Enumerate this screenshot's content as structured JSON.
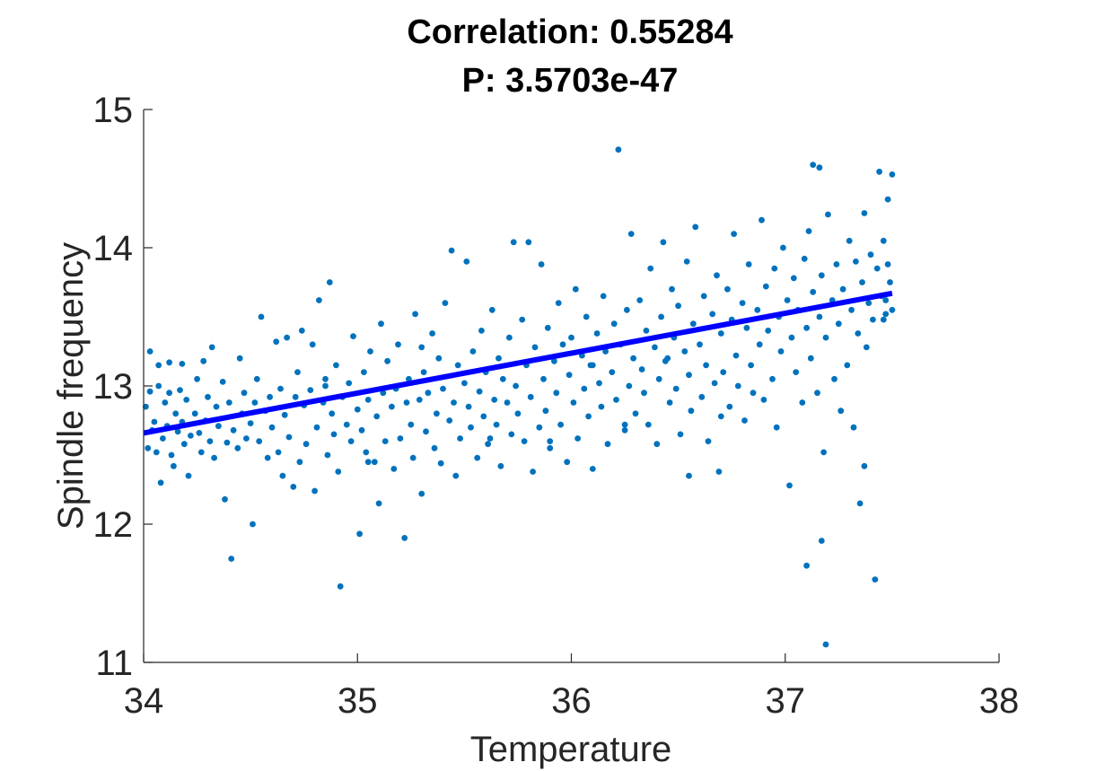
{
  "chart_data": {
    "type": "scatter",
    "title": "Correlation: 0.55284",
    "subtitle": "P: 3.5703e-47",
    "xlabel": "Temperature",
    "ylabel": "Spindle frequency",
    "xlim": [
      34,
      38
    ],
    "ylim": [
      11,
      15
    ],
    "xticks": [
      "34",
      "35",
      "36",
      "37",
      "38"
    ],
    "yticks": [
      "11",
      "12",
      "13",
      "14",
      "15"
    ],
    "grid": false,
    "point_color": "#0072BD",
    "fit_color": "#0000FF",
    "fit_line": {
      "x": [
        34.0,
        37.5
      ],
      "y": [
        12.66,
        13.67
      ]
    },
    "points": [
      [
        34.01,
        12.85
      ],
      [
        34.02,
        12.55
      ],
      [
        34.03,
        12.96
      ],
      [
        34.03,
        13.25
      ],
      [
        34.04,
        12.68
      ],
      [
        34.05,
        12.74
      ],
      [
        34.06,
        12.52
      ],
      [
        34.07,
        13.0
      ],
      [
        34.07,
        13.15
      ],
      [
        34.08,
        12.3
      ],
      [
        34.09,
        12.62
      ],
      [
        34.1,
        12.88
      ],
      [
        34.11,
        12.71
      ],
      [
        34.12,
        12.95
      ],
      [
        34.12,
        13.17
      ],
      [
        34.13,
        12.5
      ],
      [
        34.14,
        12.42
      ],
      [
        34.15,
        12.8
      ],
      [
        34.16,
        12.67
      ],
      [
        34.17,
        12.97
      ],
      [
        34.18,
        13.16
      ],
      [
        34.18,
        12.74
      ],
      [
        34.19,
        12.58
      ],
      [
        34.2,
        12.9
      ],
      [
        34.21,
        12.35
      ],
      [
        34.22,
        12.64
      ],
      [
        34.24,
        12.8
      ],
      [
        34.25,
        13.05
      ],
      [
        34.26,
        12.66
      ],
      [
        34.27,
        12.52
      ],
      [
        34.28,
        13.18
      ],
      [
        34.29,
        12.75
      ],
      [
        34.3,
        12.92
      ],
      [
        34.31,
        12.6
      ],
      [
        34.32,
        13.28
      ],
      [
        34.33,
        12.48
      ],
      [
        34.34,
        12.85
      ],
      [
        34.35,
        12.71
      ],
      [
        34.37,
        13.03
      ],
      [
        34.38,
        12.18
      ],
      [
        34.39,
        12.59
      ],
      [
        34.4,
        12.88
      ],
      [
        34.41,
        11.75
      ],
      [
        34.42,
        12.68
      ],
      [
        34.44,
        12.55
      ],
      [
        34.45,
        13.2
      ],
      [
        34.46,
        12.8
      ],
      [
        34.47,
        12.95
      ],
      [
        34.48,
        12.62
      ],
      [
        34.5,
        12.73
      ],
      [
        34.51,
        12.0
      ],
      [
        34.52,
        12.88
      ],
      [
        34.53,
        13.05
      ],
      [
        34.54,
        12.6
      ],
      [
        34.55,
        13.5
      ],
      [
        34.57,
        12.82
      ],
      [
        34.58,
        12.48
      ],
      [
        34.59,
        12.92
      ],
      [
        34.6,
        12.7
      ],
      [
        34.62,
        13.32
      ],
      [
        34.63,
        12.52
      ],
      [
        34.64,
        12.98
      ],
      [
        34.65,
        12.35
      ],
      [
        34.66,
        12.79
      ],
      [
        34.67,
        13.35
      ],
      [
        34.68,
        12.63
      ],
      [
        34.7,
        12.27
      ],
      [
        34.71,
        12.92
      ],
      [
        34.72,
        13.1
      ],
      [
        34.73,
        12.45
      ],
      [
        34.74,
        13.4
      ],
      [
        34.75,
        12.86
      ],
      [
        34.76,
        12.58
      ],
      [
        34.78,
        12.97
      ],
      [
        34.79,
        13.3
      ],
      [
        34.8,
        12.24
      ],
      [
        34.81,
        12.7
      ],
      [
        34.82,
        13.62
      ],
      [
        34.84,
        12.88
      ],
      [
        34.85,
        13.05
      ],
      [
        34.86,
        12.5
      ],
      [
        34.87,
        13.75
      ],
      [
        34.88,
        12.8
      ],
      [
        34.89,
        12.65
      ],
      [
        34.9,
        13.15
      ],
      [
        34.91,
        12.38
      ],
      [
        34.92,
        11.55
      ],
      [
        34.93,
        12.92
      ],
      [
        34.95,
        12.72
      ],
      [
        34.96,
        13.02
      ],
      [
        34.97,
        12.6
      ],
      [
        34.98,
        13.36
      ],
      [
        35.0,
        12.83
      ],
      [
        35.01,
        11.93
      ],
      [
        35.02,
        12.68
      ],
      [
        35.03,
        13.1
      ],
      [
        35.04,
        12.52
      ],
      [
        35.05,
        12.9
      ],
      [
        35.06,
        13.25
      ],
      [
        35.08,
        12.45
      ],
      [
        35.09,
        12.78
      ],
      [
        35.1,
        12.15
      ],
      [
        35.11,
        13.45
      ],
      [
        35.12,
        12.95
      ],
      [
        35.13,
        12.6
      ],
      [
        35.14,
        13.18
      ],
      [
        35.16,
        12.85
      ],
      [
        35.17,
        12.4
      ],
      [
        35.18,
        12.98
      ],
      [
        35.19,
        13.3
      ],
      [
        35.2,
        12.62
      ],
      [
        35.22,
        11.9
      ],
      [
        35.23,
        12.88
      ],
      [
        35.24,
        13.05
      ],
      [
        35.25,
        12.72
      ],
      [
        35.26,
        12.48
      ],
      [
        35.27,
        13.52
      ],
      [
        35.29,
        12.9
      ],
      [
        35.3,
        12.22
      ],
      [
        35.31,
        13.1
      ],
      [
        35.32,
        12.67
      ],
      [
        35.33,
        12.95
      ],
      [
        35.35,
        13.38
      ],
      [
        35.36,
        12.55
      ],
      [
        35.37,
        12.8
      ],
      [
        35.38,
        13.2
      ],
      [
        35.39,
        12.44
      ],
      [
        35.4,
        12.98
      ],
      [
        35.41,
        13.6
      ],
      [
        35.43,
        12.75
      ],
      [
        35.44,
        13.98
      ],
      [
        35.45,
        12.88
      ],
      [
        35.46,
        12.35
      ],
      [
        35.47,
        13.15
      ],
      [
        35.48,
        12.62
      ],
      [
        35.5,
        13.02
      ],
      [
        35.51,
        13.9
      ],
      [
        35.52,
        12.85
      ],
      [
        35.53,
        12.7
      ],
      [
        35.54,
        13.25
      ],
      [
        35.56,
        12.48
      ],
      [
        35.57,
        12.96
      ],
      [
        35.58,
        13.4
      ],
      [
        35.59,
        12.78
      ],
      [
        35.6,
        13.1
      ],
      [
        35.61,
        12.58
      ],
      [
        35.63,
        13.55
      ],
      [
        35.64,
        12.9
      ],
      [
        35.65,
        12.72
      ],
      [
        35.66,
        13.2
      ],
      [
        35.67,
        12.42
      ],
      [
        35.68,
        13.05
      ],
      [
        35.7,
        12.88
      ],
      [
        35.71,
        13.35
      ],
      [
        35.72,
        12.65
      ],
      [
        35.73,
        14.04
      ],
      [
        35.74,
        13.0
      ],
      [
        35.75,
        12.8
      ],
      [
        35.77,
        13.48
      ],
      [
        35.78,
        12.6
      ],
      [
        35.79,
        13.15
      ],
      [
        35.8,
        14.04
      ],
      [
        35.81,
        12.92
      ],
      [
        35.82,
        12.38
      ],
      [
        35.83,
        13.28
      ],
      [
        35.85,
        12.7
      ],
      [
        35.86,
        13.88
      ],
      [
        35.87,
        13.05
      ],
      [
        35.88,
        12.82
      ],
      [
        35.89,
        13.42
      ],
      [
        35.9,
        12.55
      ],
      [
        35.92,
        13.18
      ],
      [
        35.93,
        12.95
      ],
      [
        35.94,
        13.6
      ],
      [
        35.95,
        12.72
      ],
      [
        35.96,
        13.3
      ],
      [
        35.98,
        12.45
      ],
      [
        35.99,
        13.08
      ],
      [
        36.0,
        13.35
      ],
      [
        36.01,
        12.88
      ],
      [
        36.02,
        13.7
      ],
      [
        36.03,
        12.62
      ],
      [
        36.05,
        13.22
      ],
      [
        36.06,
        12.98
      ],
      [
        36.07,
        13.5
      ],
      [
        36.08,
        12.78
      ],
      [
        36.09,
        13.15
      ],
      [
        36.1,
        12.4
      ],
      [
        36.12,
        13.38
      ],
      [
        36.13,
        13.02
      ],
      [
        36.14,
        12.85
      ],
      [
        36.15,
        13.65
      ],
      [
        36.16,
        13.25
      ],
      [
        36.17,
        12.58
      ],
      [
        36.19,
        13.1
      ],
      [
        36.2,
        13.45
      ],
      [
        36.21,
        12.9
      ],
      [
        36.22,
        14.71
      ],
      [
        36.23,
        13.3
      ],
      [
        36.25,
        12.68
      ],
      [
        36.26,
        13.55
      ],
      [
        36.27,
        13.0
      ],
      [
        36.28,
        14.1
      ],
      [
        36.29,
        13.2
      ],
      [
        36.3,
        12.8
      ],
      [
        36.32,
        13.62
      ],
      [
        36.33,
        13.12
      ],
      [
        36.34,
        12.95
      ],
      [
        36.35,
        13.4
      ],
      [
        36.36,
        12.72
      ],
      [
        36.37,
        13.85
      ],
      [
        36.39,
        13.28
      ],
      [
        36.4,
        12.58
      ],
      [
        36.41,
        13.05
      ],
      [
        36.42,
        13.5
      ],
      [
        36.43,
        14.04
      ],
      [
        36.44,
        13.18
      ],
      [
        36.46,
        12.88
      ],
      [
        36.47,
        13.7
      ],
      [
        36.48,
        13.35
      ],
      [
        36.49,
        12.98
      ],
      [
        36.5,
        13.58
      ],
      [
        36.51,
        12.65
      ],
      [
        36.53,
        13.25
      ],
      [
        36.54,
        13.9
      ],
      [
        36.55,
        13.08
      ],
      [
        36.56,
        12.82
      ],
      [
        36.57,
        13.45
      ],
      [
        36.58,
        14.15
      ],
      [
        36.6,
        13.3
      ],
      [
        36.61,
        12.92
      ],
      [
        36.62,
        13.65
      ],
      [
        36.63,
        13.15
      ],
      [
        36.64,
        12.6
      ],
      [
        36.66,
        13.52
      ],
      [
        36.67,
        13.02
      ],
      [
        36.68,
        13.8
      ],
      [
        36.69,
        12.38
      ],
      [
        36.7,
        13.38
      ],
      [
        36.71,
        13.1
      ],
      [
        36.73,
        13.7
      ],
      [
        36.74,
        12.85
      ],
      [
        36.75,
        13.48
      ],
      [
        36.76,
        14.1
      ],
      [
        36.77,
        13.22
      ],
      [
        36.78,
        13.0
      ],
      [
        36.8,
        13.6
      ],
      [
        36.81,
        12.75
      ],
      [
        36.82,
        13.42
      ],
      [
        36.83,
        13.88
      ],
      [
        36.84,
        13.15
      ],
      [
        36.85,
        12.95
      ],
      [
        36.87,
        13.55
      ],
      [
        36.88,
        13.3
      ],
      [
        36.89,
        14.2
      ],
      [
        36.9,
        12.9
      ],
      [
        36.91,
        13.72
      ],
      [
        36.92,
        13.4
      ],
      [
        36.94,
        13.05
      ],
      [
        36.95,
        13.85
      ],
      [
        36.96,
        12.7
      ],
      [
        36.97,
        13.5
      ],
      [
        36.98,
        13.25
      ],
      [
        36.99,
        14.0
      ],
      [
        37.01,
        13.62
      ],
      [
        37.02,
        12.28
      ],
      [
        37.03,
        13.35
      ],
      [
        37.04,
        13.78
      ],
      [
        37.05,
        13.1
      ],
      [
        37.06,
        13.55
      ],
      [
        37.08,
        12.88
      ],
      [
        37.09,
        13.92
      ],
      [
        37.1,
        13.42
      ],
      [
        37.11,
        14.12
      ],
      [
        37.12,
        13.2
      ],
      [
        37.13,
        13.68
      ],
      [
        37.15,
        12.95
      ],
      [
        37.16,
        13.5
      ],
      [
        37.17,
        13.8
      ],
      [
        37.18,
        12.52
      ],
      [
        37.19,
        13.35
      ],
      [
        37.2,
        14.24
      ],
      [
        37.22,
        13.62
      ],
      [
        37.23,
        13.05
      ],
      [
        37.24,
        13.88
      ],
      [
        37.25,
        13.45
      ],
      [
        37.26,
        12.82
      ],
      [
        37.27,
        13.7
      ],
      [
        37.29,
        13.15
      ],
      [
        37.3,
        14.05
      ],
      [
        37.31,
        13.55
      ],
      [
        37.32,
        12.7
      ],
      [
        37.33,
        13.9
      ],
      [
        37.34,
        13.38
      ],
      [
        37.36,
        13.75
      ],
      [
        37.37,
        14.25
      ],
      [
        37.38,
        13.28
      ],
      [
        37.39,
        13.6
      ],
      [
        37.4,
        13.95
      ],
      [
        37.41,
        13.48
      ],
      [
        37.43,
        13.85
      ],
      [
        37.44,
        14.55
      ],
      [
        37.45,
        13.65
      ],
      [
        37.46,
        14.05
      ],
      [
        37.47,
        13.52
      ],
      [
        37.48,
        13.88
      ],
      [
        37.5,
        14.53
      ],
      [
        37.49,
        13.75
      ],
      [
        37.48,
        14.35
      ],
      [
        37.47,
        13.62
      ],
      [
        37.1,
        11.7
      ],
      [
        37.13,
        14.6
      ],
      [
        37.16,
        14.58
      ],
      [
        37.17,
        11.88
      ],
      [
        37.19,
        11.13
      ],
      [
        37.35,
        12.15
      ],
      [
        37.37,
        12.42
      ],
      [
        37.42,
        11.6
      ],
      [
        37.46,
        13.48
      ],
      [
        37.5,
        13.55
      ],
      [
        35.62,
        12.62
      ],
      [
        35.9,
        12.6
      ],
      [
        36.1,
        13.15
      ],
      [
        36.25,
        12.72
      ],
      [
        36.45,
        13.2
      ],
      [
        36.7,
        12.78
      ],
      [
        36.55,
        12.35
      ],
      [
        35.3,
        13.28
      ],
      [
        35.05,
        12.45
      ],
      [
        34.85,
        13.0
      ]
    ]
  }
}
